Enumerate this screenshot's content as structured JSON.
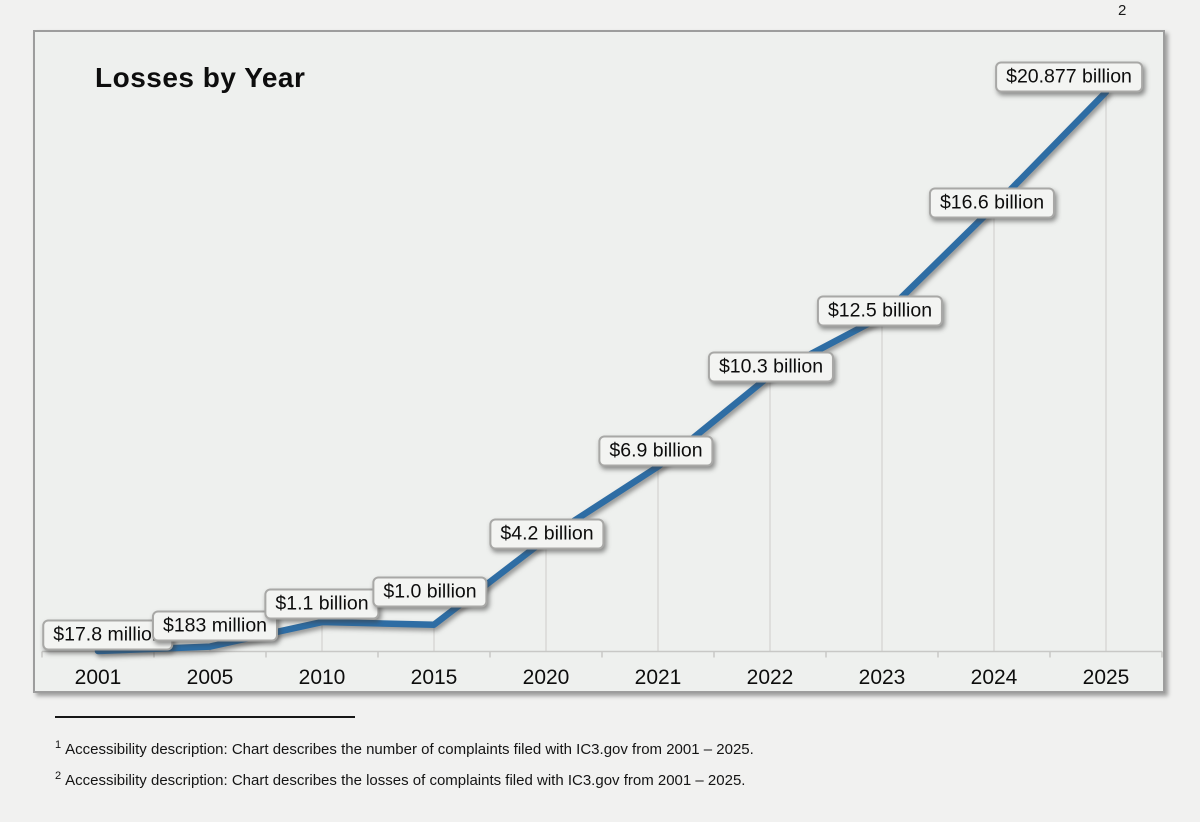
{
  "page": {
    "page_number": "2"
  },
  "chart": {
    "footnotes": [
      {
        "marker": "1",
        "text": "Accessibility description: Chart describes the number of complaints filed with IC3.gov from 2001 – 2025."
      },
      {
        "marker": "2",
        "text": "Accessibility description: Chart describes the losses of complaints filed with IC3.gov from 2001 – 2025."
      }
    ]
  },
  "chart_data": {
    "type": "line",
    "title": "Losses by Year",
    "categories": [
      "2001",
      "2005",
      "2010",
      "2015",
      "2020",
      "2021",
      "2022",
      "2023",
      "2024",
      "2025"
    ],
    "values_usd_billions": [
      0.0178,
      0.183,
      1.1,
      1.0,
      4.2,
      6.9,
      10.3,
      12.5,
      16.6,
      20.877
    ],
    "data_labels": [
      "$17.8 million",
      "$183 million",
      "$1.1 billion",
      "$1.0 billion",
      "$4.2 billion",
      "$6.9 billion",
      "$10.3 billion",
      "$12.5 billion",
      "$16.6 billion",
      "$20.877 billion"
    ],
    "xlabel": "",
    "ylabel": "",
    "ylim": [
      0,
      20.877
    ],
    "grid": "vertical-drop-lines-from-points",
    "legend": "none",
    "line_color": "#2e6da4",
    "axis_color": "#c8c8c6",
    "drop_line_color": "#d8d8d6"
  }
}
